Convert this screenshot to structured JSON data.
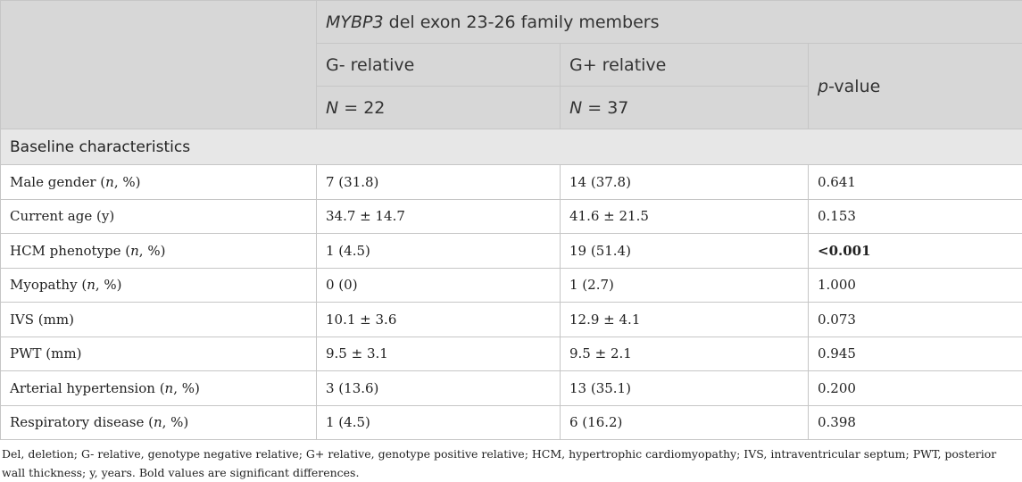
{
  "header": {
    "group_title_italic": "MYBP3",
    "group_title_rest": " del exon 23-26 family members",
    "col_gneg": "G- relative",
    "col_gpos": "G+ relative",
    "col_p_italic": "p",
    "col_p_rest": "-value",
    "n_italic": "N",
    "n_gneg_rest": " = 22",
    "n_gpos_rest": " = 37"
  },
  "section": "Baseline characteristics",
  "rows": [
    {
      "pre": "Male gender (",
      "it": "n",
      "post": ", %)",
      "gneg": "7 (31.8)",
      "gpos": "14 (37.8)",
      "p": "0.641",
      "bold": false
    },
    {
      "pre": "Current age (y)",
      "it": "",
      "post": "",
      "gneg": "34.7 ± 14.7",
      "gpos": "41.6 ± 21.5",
      "p": "0.153",
      "bold": false
    },
    {
      "pre": "HCM phenotype (",
      "it": "n",
      "post": ", %)",
      "gneg": "1 (4.5)",
      "gpos": "19 (51.4)",
      "p": "<0.001",
      "bold": true
    },
    {
      "pre": "Myopathy (",
      "it": "n",
      "post": ", %)",
      "gneg": "0 (0)",
      "gpos": "1 (2.7)",
      "p": "1.000",
      "bold": false
    },
    {
      "pre": "IVS (mm)",
      "it": "",
      "post": "",
      "gneg": "10.1 ± 3.6",
      "gpos": "12.9 ± 4.1",
      "p": "0.073",
      "bold": false
    },
    {
      "pre": "PWT (mm)",
      "it": "",
      "post": "",
      "gneg": "9.5 ± 3.1",
      "gpos": "9.5 ± 2.1",
      "p": "0.945",
      "bold": false
    },
    {
      "pre": "Arterial hypertension (",
      "it": "n",
      "post": ", %)",
      "gneg": "3 (13.6)",
      "gpos": "13 (35.1)",
      "p": "0.200",
      "bold": false
    },
    {
      "pre": "Respiratory disease (",
      "it": "n",
      "post": ", %)",
      "gneg": "1 (4.5)",
      "gpos": "6 (16.2)",
      "p": "0.398",
      "bold": false
    }
  ],
  "footnote": "Del, deletion; G- relative, genotype negative relative; G+ relative, genotype positive relative; HCM, hypertrophic cardiomyopathy; IVS, intraventricular septum; PWT, posterior wall thickness; y, years. Bold values are significant differences."
}
